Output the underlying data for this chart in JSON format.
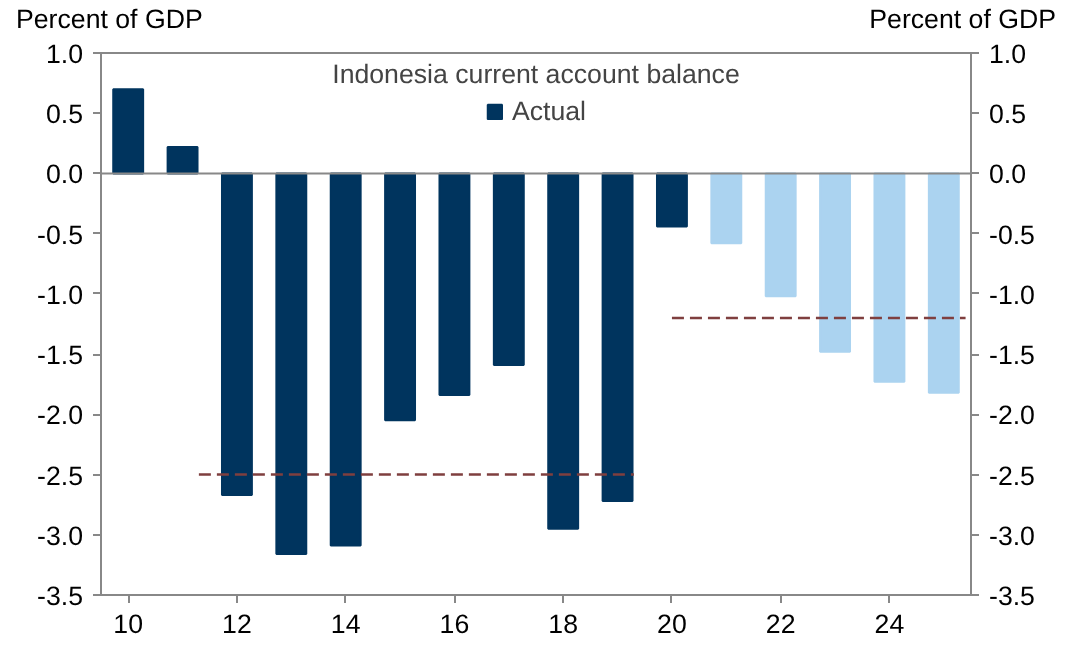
{
  "chart_data": {
    "type": "bar",
    "title": "Indonesia current account balance",
    "ylabel": "Percent of GDP",
    "y2label": "Percent of GDP",
    "xlim": [
      9.5,
      25.5
    ],
    "xticks": [
      10,
      12,
      14,
      16,
      18,
      20,
      22,
      24
    ],
    "ylim": [
      -3.5,
      1.0
    ],
    "yticks": [
      {
        "value": -3.5,
        "label": "-3.5"
      },
      {
        "value": -3.0,
        "label": "-3.0"
      },
      {
        "value": -2.5,
        "label": "-2.5"
      },
      {
        "value": -2.0,
        "label": "-2.0"
      },
      {
        "value": -1.5,
        "label": "-1.5"
      },
      {
        "value": -1.0,
        "label": "-1.0"
      },
      {
        "value": -0.5,
        "label": "-0.5"
      },
      {
        "value": 0,
        "label": "0.0"
      },
      {
        "value": 0.5,
        "label": "0.5"
      },
      {
        "value": 1.0,
        "label": "1.0"
      }
    ],
    "y2lim": [
      -3.5,
      1.0
    ],
    "y2ticks": [
      {
        "value": -3.5,
        "label": "-3.5"
      },
      {
        "value": -3.0,
        "label": "-3.0"
      },
      {
        "value": -2.5,
        "label": "-2.5"
      },
      {
        "value": -2.0,
        "label": "-2.0"
      },
      {
        "value": -1.5,
        "label": "-1.5"
      },
      {
        "value": -1.0,
        "label": "-1.0"
      },
      {
        "value": -0.5,
        "label": "-0.5"
      },
      {
        "value": 0,
        "label": "0.0"
      },
      {
        "value": 0.5,
        "label": "0.5"
      },
      {
        "value": 1.0,
        "label": "1.0"
      }
    ],
    "grid": false,
    "legend": "top",
    "ref_lines": [
      {
        "axis": "y",
        "value": 0,
        "color": "#888888"
      }
    ],
    "series": [
      {
        "name": "Actual",
        "color": "#00345e",
        "x": [
          10,
          11,
          12,
          13,
          14,
          15,
          16,
          17,
          18,
          19,
          20
        ],
        "values": [
          0.7,
          0.22,
          -2.67,
          -3.16,
          -3.09,
          -2.05,
          -1.84,
          -1.59,
          -2.95,
          -2.72,
          -0.44
        ]
      },
      {
        "color": "#abd3f0",
        "x": [
          21,
          22,
          23,
          24,
          25
        ],
        "values": [
          -0.58,
          -1.02,
          -1.48,
          -1.73,
          -1.82
        ]
      },
      {
        "type": "line",
        "color": "#7f3f3f",
        "line_style": "dashed",
        "x": [
          11.3,
          19.3
        ],
        "values": [
          -2.5,
          -2.5
        ]
      },
      {
        "type": "line",
        "color": "#7f3f3f",
        "line_style": "dashed",
        "x": [
          20.0,
          25.4
        ],
        "values": [
          -1.2,
          -1.2
        ]
      }
    ]
  }
}
